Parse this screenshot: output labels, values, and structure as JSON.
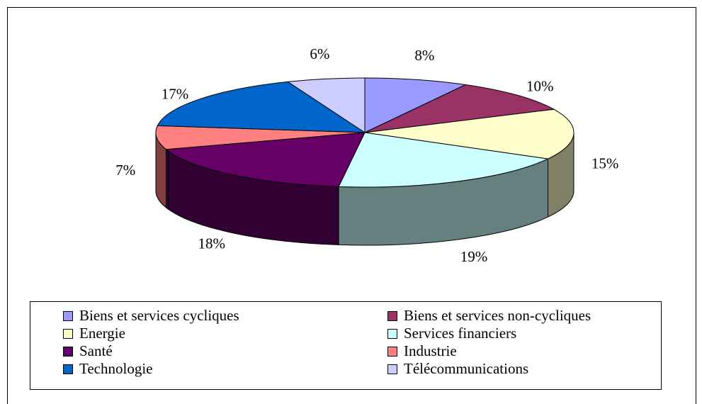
{
  "chart_data": {
    "type": "pie3d",
    "categories": [
      "Biens et services cycliques",
      "Biens et services non-cycliques",
      "Energie",
      "Services financiers",
      "Santé",
      "Industrie",
      "Technologie",
      "Télécommunications"
    ],
    "values": [
      8,
      10,
      15,
      19,
      18,
      7,
      17,
      6
    ],
    "value_labels": [
      "8%",
      "10%",
      "15%",
      "19%",
      "18%",
      "7%",
      "17%",
      "6%"
    ],
    "colors": [
      "#9999ff",
      "#993366",
      "#ffffcc",
      "#ccffff",
      "#660066",
      "#ff8080",
      "#0066cc",
      "#ccccff"
    ],
    "legend": "bottom"
  }
}
